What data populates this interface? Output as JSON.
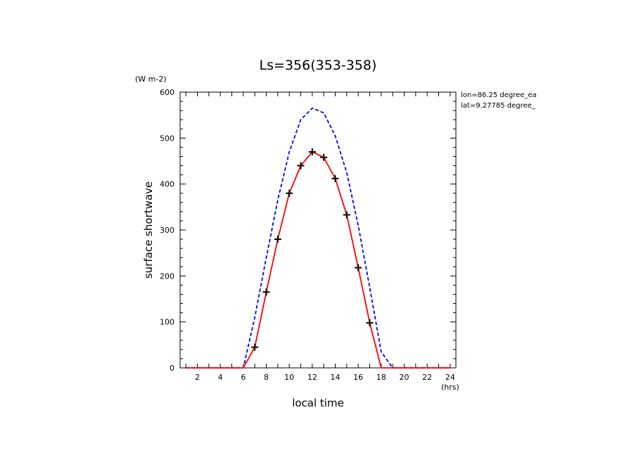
{
  "chart_data": {
    "type": "line",
    "title": "Ls=356(353-358)",
    "xlabel": "local time",
    "xunit": "(hrs)",
    "ylabel": "surface shortwave",
    "yunit": "(W m-2)",
    "xlim": [
      0.5,
      24.5
    ],
    "ylim": [
      0,
      600
    ],
    "x_ticks": [
      2,
      4,
      6,
      8,
      10,
      12,
      14,
      16,
      18,
      20,
      22,
      24
    ],
    "y_ticks": [
      0,
      100,
      200,
      300,
      400,
      500,
      600
    ],
    "info_lines": [
      "lon=86.25 degree_ea",
      "lat=9.27785 degree_"
    ],
    "grid": false,
    "x": [
      1,
      2,
      3,
      4,
      5,
      6,
      7,
      8,
      9,
      10,
      11,
      12,
      13,
      14,
      15,
      16,
      17,
      18,
      19,
      20,
      21,
      22,
      23,
      24
    ],
    "series": [
      {
        "style": "dashed",
        "color": "#0000ff",
        "values": [
          0,
          0,
          0,
          0,
          0,
          0,
          110,
          240,
          365,
          470,
          540,
          565,
          555,
          505,
          425,
          310,
          175,
          35,
          0,
          0,
          0,
          0,
          0,
          0
        ]
      },
      {
        "style": "solid",
        "color": "#ff0000",
        "values": [
          0,
          0,
          0,
          0,
          0,
          0,
          45,
          165,
          280,
          380,
          440,
          470,
          458,
          412,
          333,
          218,
          98,
          0,
          0,
          0,
          0,
          0,
          0,
          0
        ]
      },
      {
        "style": "markers",
        "marker": "plus",
        "color": "#000000",
        "x": [
          7,
          8,
          9,
          10,
          11,
          12,
          13,
          14,
          15,
          16,
          17
        ],
        "values": [
          45,
          165,
          280,
          380,
          440,
          470,
          458,
          412,
          333,
          218,
          98
        ]
      }
    ]
  }
}
